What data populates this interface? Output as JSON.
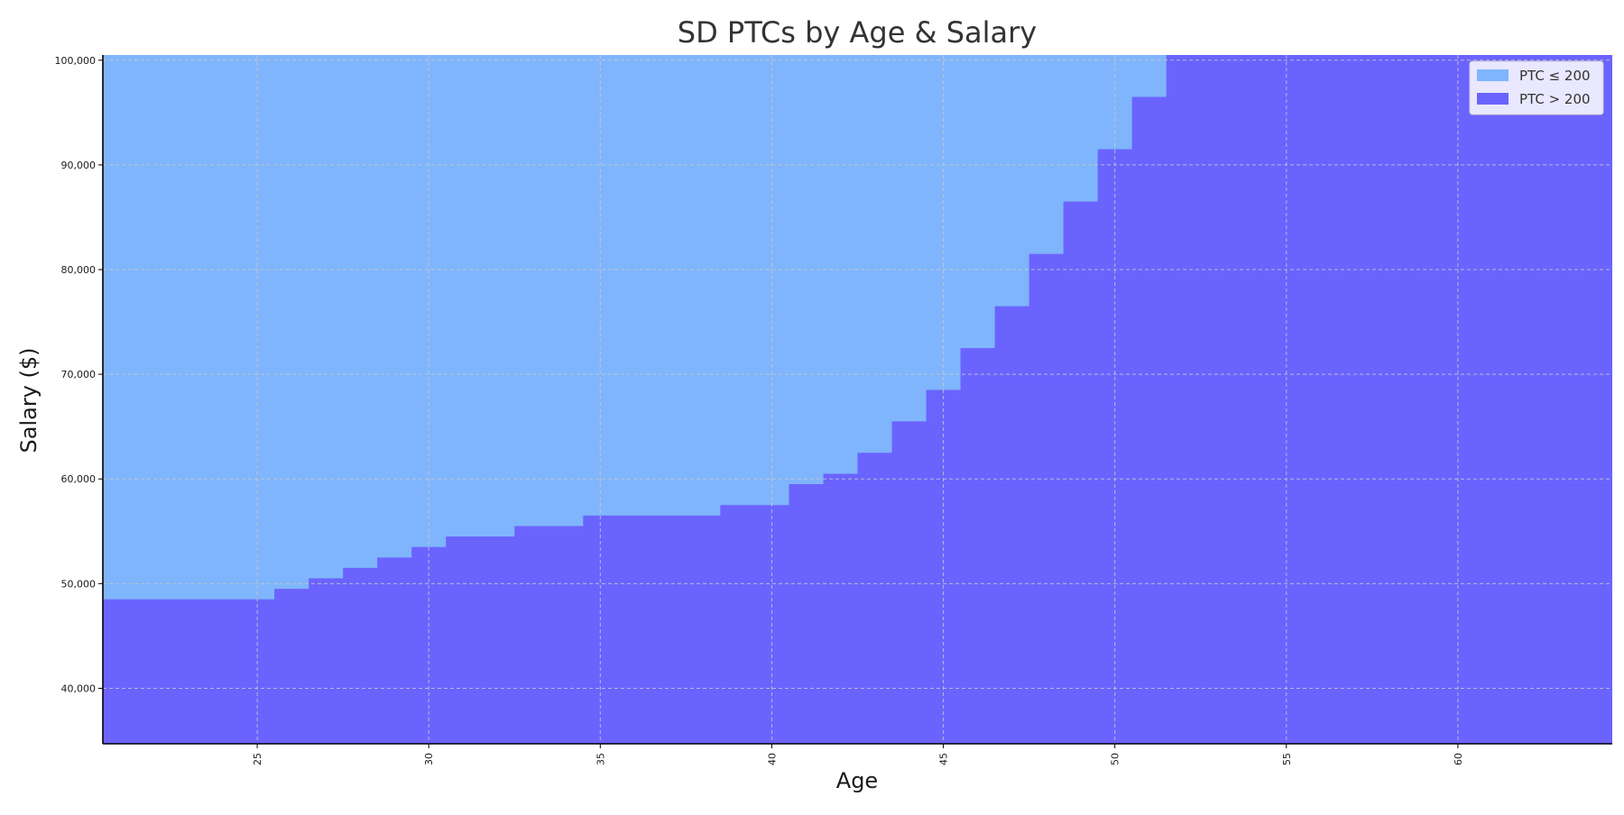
{
  "chart_data": {
    "type": "area",
    "title": "SD PTCs by Age & Salary",
    "xlabel": "Age",
    "ylabel": "Salary ($)",
    "xlim": [
      20.5,
      64.5
    ],
    "ylim": [
      34700,
      100500
    ],
    "xticks": [
      25,
      30,
      35,
      40,
      45,
      50,
      55,
      60
    ],
    "xtick_labels": [
      "25",
      "30",
      "35",
      "40",
      "45",
      "50",
      "55",
      "60"
    ],
    "yticks": [
      40000,
      50000,
      60000,
      70000,
      80000,
      90000,
      100000
    ],
    "ytick_labels": [
      "40,000",
      "50,000",
      "60,000",
      "70,000",
      "80,000",
      "90,000",
      "100,000"
    ],
    "grid": true,
    "legend_position": "top-right",
    "step_boundary": {
      "description": "salary threshold per age; below = PTC > 200, above = PTC ≤ 200",
      "ages": [
        21,
        22,
        23,
        24,
        25,
        26,
        27,
        28,
        29,
        30,
        31,
        32,
        33,
        34,
        35,
        36,
        37,
        38,
        39,
        40,
        41,
        42,
        43,
        44,
        45,
        46,
        47,
        48,
        49,
        50,
        51,
        52,
        53,
        54,
        55,
        56,
        57,
        58,
        59,
        60,
        61,
        62,
        63,
        64
      ],
      "salary": [
        48500,
        48500,
        48500,
        48500,
        48500,
        49500,
        50500,
        51500,
        52500,
        53500,
        54500,
        54500,
        55500,
        55500,
        56500,
        56500,
        56500,
        56500,
        57500,
        57500,
        59500,
        60500,
        62500,
        65500,
        68500,
        72500,
        76500,
        81500,
        86500,
        91500,
        96500,
        100500,
        100500,
        100500,
        100500,
        100500,
        100500,
        100500,
        100500,
        100500,
        100500,
        100500,
        100500,
        100500
      ]
    },
    "series": [
      {
        "name": "PTC ≤ 200",
        "color": "#7fb5fc"
      },
      {
        "name": "PTC > 200",
        "color": "#6b63fe"
      }
    ]
  }
}
